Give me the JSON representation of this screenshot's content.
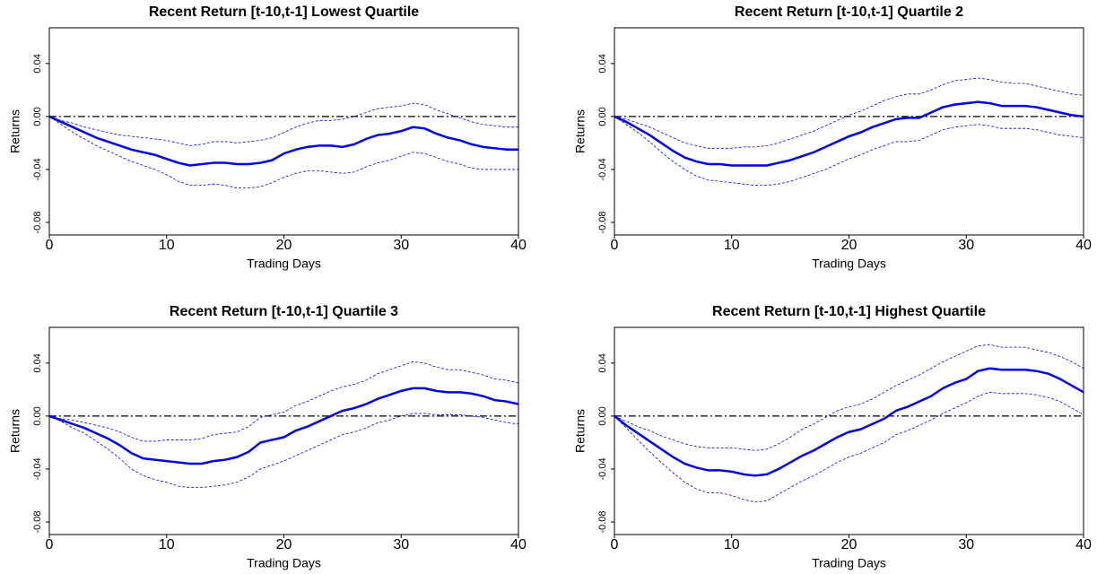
{
  "chart_data": [
    {
      "type": "line",
      "title": "Recent Return [t-10,t-1] Lowest Quartile",
      "x_label": "Trading Days",
      "y_label": "Returns",
      "xlim": [
        0,
        40
      ],
      "xticks": [
        0,
        10,
        20,
        30,
        40
      ],
      "ylim": [
        -0.0895,
        0.067
      ],
      "yticks": [
        -0.08,
        -0.04,
        {
          "value": 0,
          "label": "0.00"
        },
        0.04
      ],
      "hline": 0,
      "hline_color": "#000000",
      "x": [
        0,
        1,
        2,
        3,
        4,
        5,
        6,
        7,
        8,
        9,
        10,
        11,
        12,
        13,
        14,
        15,
        16,
        17,
        18,
        19,
        20,
        21,
        22,
        23,
        24,
        25,
        26,
        27,
        28,
        29,
        30,
        31,
        32,
        33,
        34,
        35,
        36,
        37,
        38,
        39,
        40
      ],
      "series": [
        {
          "color": "#0000ee",
          "dashed": false,
          "values": [
            0,
            -0.004,
            -0.008,
            -0.012,
            -0.016,
            -0.019,
            -0.022,
            -0.025,
            -0.027,
            -0.029,
            -0.032,
            -0.035,
            -0.037,
            -0.036,
            -0.035,
            -0.035,
            -0.036,
            -0.036,
            -0.035,
            -0.033,
            -0.028,
            -0.025,
            -0.023,
            -0.022,
            -0.022,
            -0.023,
            -0.021,
            -0.017,
            -0.014,
            -0.013,
            -0.011,
            -0.008,
            -0.009,
            -0.013,
            -0.016,
            -0.018,
            -0.021,
            -0.023,
            -0.024,
            -0.025,
            -0.025
          ]
        },
        {
          "color": "#0000ff",
          "dashed": true,
          "values": [
            0,
            -0.003,
            -0.005,
            -0.008,
            -0.01,
            -0.012,
            -0.014,
            -0.015,
            -0.016,
            -0.017,
            -0.018,
            -0.02,
            -0.022,
            -0.021,
            -0.019,
            -0.019,
            -0.02,
            -0.019,
            -0.018,
            -0.016,
            -0.012,
            -0.008,
            -0.005,
            -0.003,
            -0.003,
            -0.002,
            0.0,
            0.003,
            0.006,
            0.007,
            0.008,
            0.01,
            0.009,
            0.005,
            0.002,
            -0.001,
            -0.004,
            -0.006,
            -0.007,
            -0.008,
            -0.008
          ]
        },
        {
          "color": "#0000ff",
          "dashed": true,
          "values": [
            0,
            -0.006,
            -0.012,
            -0.017,
            -0.022,
            -0.026,
            -0.03,
            -0.034,
            -0.037,
            -0.04,
            -0.044,
            -0.049,
            -0.052,
            -0.052,
            -0.051,
            -0.052,
            -0.054,
            -0.054,
            -0.053,
            -0.05,
            -0.046,
            -0.043,
            -0.041,
            -0.041,
            -0.042,
            -0.043,
            -0.042,
            -0.038,
            -0.035,
            -0.033,
            -0.03,
            -0.027,
            -0.028,
            -0.031,
            -0.034,
            -0.036,
            -0.039,
            -0.04,
            -0.04,
            -0.04,
            -0.04
          ]
        }
      ]
    },
    {
      "type": "line",
      "title": "Recent Return [t-10,t-1] Quartile 2",
      "x_label": "Trading Days",
      "y_label": "Returns",
      "xlim": [
        0,
        40
      ],
      "xticks": [
        0,
        10,
        20,
        30,
        40
      ],
      "ylim": [
        -0.0895,
        0.067
      ],
      "yticks": [
        -0.08,
        -0.04,
        {
          "value": 0,
          "label": "0.00"
        },
        0.04
      ],
      "hline": 0,
      "hline_color": "#000000",
      "x": [
        0,
        1,
        2,
        3,
        4,
        5,
        6,
        7,
        8,
        9,
        10,
        11,
        12,
        13,
        14,
        15,
        16,
        17,
        18,
        19,
        20,
        21,
        22,
        23,
        24,
        25,
        26,
        27,
        28,
        29,
        30,
        31,
        32,
        33,
        34,
        35,
        36,
        37,
        38,
        39,
        40
      ],
      "series": [
        {
          "color": "#0000ee",
          "dashed": false,
          "values": [
            0,
            -0.004,
            -0.009,
            -0.014,
            -0.02,
            -0.026,
            -0.031,
            -0.034,
            -0.036,
            -0.036,
            -0.037,
            -0.037,
            -0.037,
            -0.037,
            -0.035,
            -0.033,
            -0.03,
            -0.027,
            -0.023,
            -0.019,
            -0.015,
            -0.012,
            -0.008,
            -0.005,
            -0.002,
            -0.001,
            -0.001,
            0.003,
            0.007,
            0.009,
            0.01,
            0.011,
            0.01,
            0.008,
            0.008,
            0.008,
            0.007,
            0.005,
            0.003,
            0.001,
            0.0
          ]
        },
        {
          "color": "#0000ff",
          "dashed": true,
          "values": [
            0,
            -0.002,
            -0.005,
            -0.008,
            -0.012,
            -0.016,
            -0.02,
            -0.022,
            -0.024,
            -0.024,
            -0.024,
            -0.023,
            -0.023,
            -0.022,
            -0.02,
            -0.017,
            -0.014,
            -0.011,
            -0.007,
            -0.003,
            0.001,
            0.004,
            0.008,
            0.012,
            0.015,
            0.017,
            0.017,
            0.02,
            0.024,
            0.027,
            0.028,
            0.029,
            0.028,
            0.026,
            0.025,
            0.025,
            0.023,
            0.021,
            0.019,
            0.017,
            0.016
          ]
        },
        {
          "color": "#0000ff",
          "dashed": true,
          "values": [
            0,
            -0.006,
            -0.012,
            -0.019,
            -0.027,
            -0.034,
            -0.04,
            -0.045,
            -0.048,
            -0.049,
            -0.05,
            -0.051,
            -0.052,
            -0.052,
            -0.051,
            -0.049,
            -0.046,
            -0.043,
            -0.04,
            -0.036,
            -0.032,
            -0.029,
            -0.025,
            -0.022,
            -0.019,
            -0.019,
            -0.018,
            -0.014,
            -0.01,
            -0.008,
            -0.007,
            -0.006,
            -0.007,
            -0.009,
            -0.009,
            -0.009,
            -0.01,
            -0.012,
            -0.014,
            -0.015,
            -0.016
          ]
        }
      ]
    },
    {
      "type": "line",
      "title": "Recent Return [t-10,t-1] Quartile 3",
      "x_label": "Trading Days",
      "y_label": "Returns",
      "xlim": [
        0,
        40
      ],
      "xticks": [
        0,
        10,
        20,
        30,
        40
      ],
      "ylim": [
        -0.0895,
        0.067
      ],
      "yticks": [
        -0.08,
        -0.04,
        {
          "value": 0,
          "label": "0.00"
        },
        0.04
      ],
      "hline": 0,
      "hline_color": "#000000",
      "x": [
        0,
        1,
        2,
        3,
        4,
        5,
        6,
        7,
        8,
        9,
        10,
        11,
        12,
        13,
        14,
        15,
        16,
        17,
        18,
        19,
        20,
        21,
        22,
        23,
        24,
        25,
        26,
        27,
        28,
        29,
        30,
        31,
        32,
        33,
        34,
        35,
        36,
        37,
        38,
        39,
        40
      ],
      "series": [
        {
          "color": "#0000ee",
          "dashed": false,
          "values": [
            0,
            -0.003,
            -0.006,
            -0.009,
            -0.013,
            -0.017,
            -0.022,
            -0.028,
            -0.032,
            -0.033,
            -0.034,
            -0.035,
            -0.036,
            -0.036,
            -0.034,
            -0.033,
            -0.031,
            -0.027,
            -0.02,
            -0.018,
            -0.016,
            -0.011,
            -0.008,
            -0.004,
            0.0,
            0.004,
            0.006,
            0.009,
            0.013,
            0.016,
            0.019,
            0.021,
            0.021,
            0.019,
            0.018,
            0.018,
            0.017,
            0.015,
            0.012,
            0.011,
            0.009
          ]
        },
        {
          "color": "#0000ff",
          "dashed": true,
          "values": [
            0,
            -0.002,
            -0.003,
            -0.005,
            -0.007,
            -0.009,
            -0.012,
            -0.016,
            -0.019,
            -0.019,
            -0.018,
            -0.018,
            -0.018,
            -0.017,
            -0.014,
            -0.013,
            -0.012,
            -0.008,
            -0.001,
            0.001,
            0.003,
            0.008,
            0.011,
            0.015,
            0.019,
            0.022,
            0.024,
            0.027,
            0.032,
            0.035,
            0.038,
            0.041,
            0.04,
            0.037,
            0.035,
            0.035,
            0.033,
            0.031,
            0.028,
            0.027,
            0.025
          ]
        },
        {
          "color": "#0000ff",
          "dashed": true,
          "values": [
            0,
            -0.004,
            -0.009,
            -0.013,
            -0.019,
            -0.025,
            -0.032,
            -0.04,
            -0.045,
            -0.048,
            -0.05,
            -0.053,
            -0.054,
            -0.054,
            -0.053,
            -0.052,
            -0.05,
            -0.046,
            -0.04,
            -0.037,
            -0.034,
            -0.03,
            -0.026,
            -0.022,
            -0.018,
            -0.014,
            -0.012,
            -0.009,
            -0.005,
            -0.003,
            0.0,
            0.002,
            0.002,
            0.001,
            0.001,
            0.001,
            0.0,
            -0.001,
            -0.003,
            -0.005,
            -0.006
          ]
        }
      ]
    },
    {
      "type": "line",
      "title": "Recent Return [t-10,t-1] Highest Quartile",
      "x_label": "Trading Days",
      "y_label": "Returns",
      "xlim": [
        0,
        40
      ],
      "xticks": [
        0,
        10,
        20,
        30,
        40
      ],
      "ylim": [
        -0.0895,
        0.067
      ],
      "yticks": [
        -0.08,
        -0.04,
        {
          "value": 0,
          "label": "0.00"
        },
        0.04
      ],
      "hline": 0,
      "hline_color": "#000000",
      "x": [
        0,
        1,
        2,
        3,
        4,
        5,
        6,
        7,
        8,
        9,
        10,
        11,
        12,
        13,
        14,
        15,
        16,
        17,
        18,
        19,
        20,
        21,
        22,
        23,
        24,
        25,
        26,
        27,
        28,
        29,
        30,
        31,
        32,
        33,
        34,
        35,
        36,
        37,
        38,
        39,
        40
      ],
      "series": [
        {
          "color": "#0000ee",
          "dashed": false,
          "values": [
            0,
            -0.007,
            -0.013,
            -0.019,
            -0.025,
            -0.031,
            -0.036,
            -0.039,
            -0.041,
            -0.041,
            -0.042,
            -0.044,
            -0.045,
            -0.044,
            -0.04,
            -0.035,
            -0.03,
            -0.026,
            -0.021,
            -0.016,
            -0.012,
            -0.01,
            -0.006,
            -0.002,
            0.004,
            0.007,
            0.011,
            0.015,
            0.021,
            0.025,
            0.028,
            0.034,
            0.036,
            0.035,
            0.035,
            0.035,
            0.034,
            0.032,
            0.028,
            0.023,
            0.018
          ]
        },
        {
          "color": "#0000ff",
          "dashed": true,
          "values": [
            0,
            -0.004,
            -0.008,
            -0.011,
            -0.015,
            -0.018,
            -0.021,
            -0.023,
            -0.024,
            -0.024,
            -0.024,
            -0.025,
            -0.026,
            -0.025,
            -0.021,
            -0.016,
            -0.01,
            -0.006,
            -0.001,
            0.004,
            0.007,
            0.009,
            0.013,
            0.018,
            0.023,
            0.027,
            0.031,
            0.036,
            0.041,
            0.045,
            0.049,
            0.053,
            0.054,
            0.052,
            0.052,
            0.052,
            0.05,
            0.048,
            0.045,
            0.041,
            0.036
          ]
        },
        {
          "color": "#0000ff",
          "dashed": true,
          "values": [
            0,
            -0.009,
            -0.018,
            -0.027,
            -0.035,
            -0.043,
            -0.05,
            -0.055,
            -0.058,
            -0.058,
            -0.06,
            -0.063,
            -0.065,
            -0.064,
            -0.059,
            -0.054,
            -0.049,
            -0.045,
            -0.04,
            -0.035,
            -0.031,
            -0.028,
            -0.024,
            -0.02,
            -0.014,
            -0.011,
            -0.007,
            -0.003,
            0.002,
            0.006,
            0.01,
            0.015,
            0.018,
            0.017,
            0.017,
            0.017,
            0.016,
            0.014,
            0.011,
            0.006,
            0.001
          ]
        }
      ]
    }
  ]
}
